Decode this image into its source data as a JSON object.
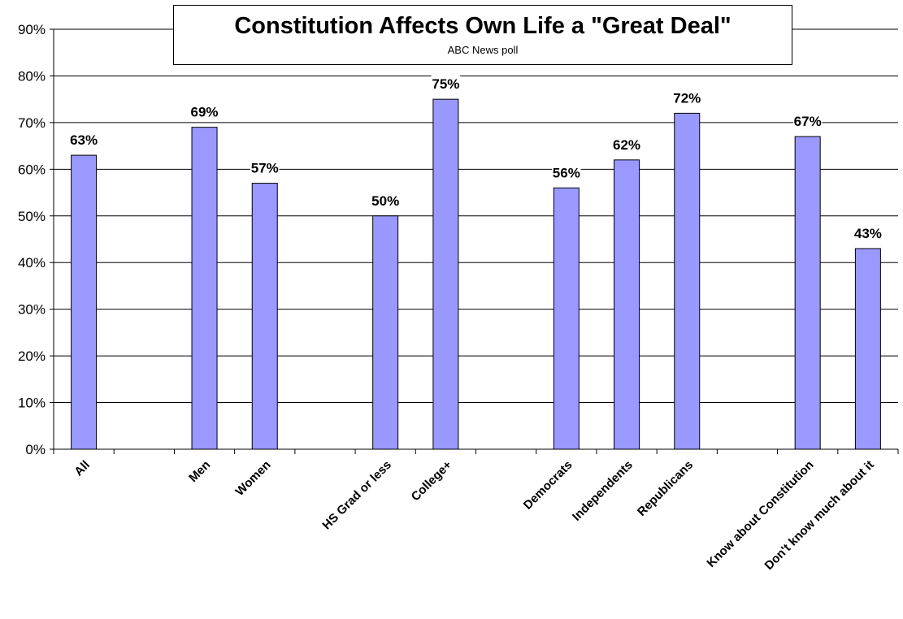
{
  "chart_data": {
    "type": "bar",
    "title": "Constitution Affects Own Life a \"Great Deal\"",
    "subtitle": "ABC News poll",
    "xlabel": "",
    "ylabel": "",
    "ylim": [
      0,
      90
    ],
    "y_ticks": [
      "0%",
      "10%",
      "20%",
      "30%",
      "40%",
      "50%",
      "60%",
      "70%",
      "80%",
      "90%"
    ],
    "grid": true,
    "legend": "none",
    "bar_color": "#9999ff",
    "categories": [
      "All",
      "",
      "Men",
      "Women",
      "",
      "HS Grad or less",
      "College+",
      "",
      "Democrats",
      "Independents",
      "Republicans",
      "",
      "Know about Constitution",
      "Don't know much about it"
    ],
    "values": [
      63,
      null,
      69,
      57,
      null,
      50,
      75,
      null,
      56,
      62,
      72,
      null,
      67,
      43
    ],
    "data_labels": [
      "63%",
      "",
      "69%",
      "57%",
      "",
      "50%",
      "75%",
      "",
      "56%",
      "62%",
      "72%",
      "",
      "67%",
      "43%"
    ]
  }
}
